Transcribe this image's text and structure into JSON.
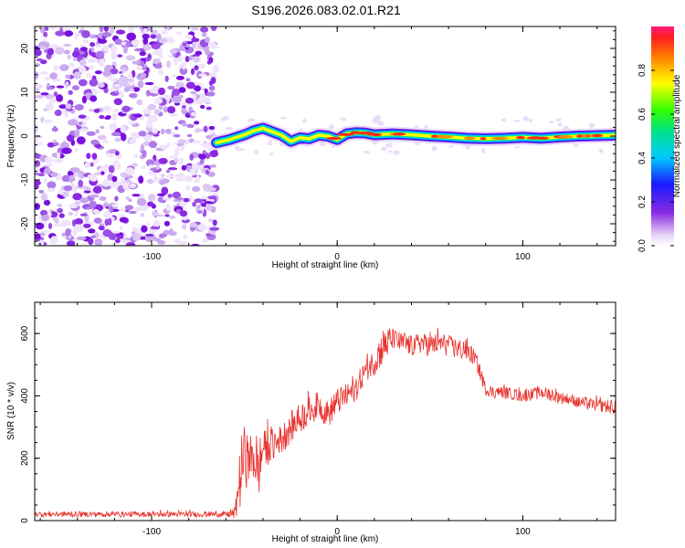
{
  "title": "S196.2026.083.02.01.R21",
  "chart_data": [
    {
      "type": "heatmap",
      "panel": "spectrogram",
      "xlabel": "Height of straight line (km)",
      "ylabel": "Frequency (Hz)",
      "xlim": [
        -163,
        150
      ],
      "ylim": [
        -25,
        25
      ],
      "xticks": [
        "-100",
        "0",
        "100"
      ],
      "xtick_values": [
        -100,
        0,
        100
      ],
      "yticks": [
        "-20",
        "-10",
        "0",
        "10",
        "20"
      ],
      "ytick_values": [
        -20,
        -10,
        0,
        10,
        20
      ],
      "noise_region_x": [
        -163,
        -65
      ],
      "signal_start_x": -65,
      "ridge": {
        "x": [
          -65,
          -58,
          -50,
          -45,
          -40,
          -35,
          -30,
          -25,
          -20,
          -15,
          -10,
          -5,
          0,
          5,
          10,
          15,
          20,
          30,
          40,
          50,
          60,
          70,
          80,
          90,
          100,
          110,
          120,
          130,
          140,
          150
        ],
        "freq": [
          -1.5,
          -0.8,
          0.3,
          1.2,
          1.8,
          1.0,
          0.2,
          -1.2,
          -0.4,
          -0.6,
          0.2,
          0.0,
          -0.8,
          0.5,
          0.8,
          0.7,
          0.3,
          0.5,
          0.3,
          0.0,
          -0.2,
          -0.5,
          -0.6,
          -0.5,
          -0.3,
          -0.5,
          -0.2,
          0.0,
          0.1,
          0.2
        ]
      },
      "colorbar": {
        "label": "Normalized spectral amplitude",
        "ticks": [
          "0.0",
          "0.2",
          "0.4",
          "0.6",
          "0.8"
        ],
        "tick_values": [
          0.0,
          0.2,
          0.4,
          0.6,
          0.8
        ],
        "range": [
          0,
          1
        ]
      }
    },
    {
      "type": "line",
      "panel": "snr",
      "xlabel": "Height of straight line (km)",
      "ylabel": "SNR (10 * v/v)",
      "xlim": [
        -163,
        150
      ],
      "ylim": [
        0,
        700
      ],
      "xticks": [
        "-100",
        "0",
        "100"
      ],
      "xtick_values": [
        -100,
        0,
        100
      ],
      "yticks": [
        "0",
        "200",
        "400",
        "600"
      ],
      "ytick_values": [
        0,
        200,
        400,
        600
      ],
      "series": [
        {
          "name": "SNR",
          "color": "#e8332f",
          "x": [
            -163,
            -150,
            -140,
            -130,
            -120,
            -110,
            -100,
            -90,
            -80,
            -70,
            -60,
            -55,
            -52,
            -50,
            -48,
            -45,
            -42,
            -40,
            -35,
            -30,
            -25,
            -20,
            -15,
            -10,
            -5,
            0,
            5,
            10,
            15,
            20,
            25,
            30,
            35,
            40,
            45,
            50,
            55,
            60,
            65,
            70,
            75,
            80,
            85,
            90,
            100,
            110,
            120,
            130,
            140,
            150
          ],
          "y": [
            20,
            20,
            20,
            20,
            20,
            20,
            20,
            20,
            20,
            20,
            20,
            22,
            150,
            220,
            180,
            200,
            160,
            230,
            240,
            260,
            300,
            330,
            350,
            370,
            340,
            380,
            400,
            420,
            480,
            510,
            560,
            580,
            570,
            560,
            570,
            560,
            570,
            560,
            550,
            545,
            510,
            420,
            410,
            410,
            400,
            410,
            395,
            380,
            370,
            360
          ],
          "amp": [
            18,
            18,
            18,
            18,
            18,
            18,
            18,
            18,
            18,
            18,
            18,
            40,
            230,
            170,
            200,
            150,
            160,
            120,
            110,
            100,
            100,
            100,
            100,
            90,
            90,
            80,
            80,
            80,
            70,
            90,
            120,
            70,
            70,
            70,
            70,
            70,
            70,
            70,
            70,
            70,
            60,
            40,
            40,
            40,
            40,
            40,
            40,
            40,
            40,
            40
          ]
        }
      ]
    }
  ]
}
